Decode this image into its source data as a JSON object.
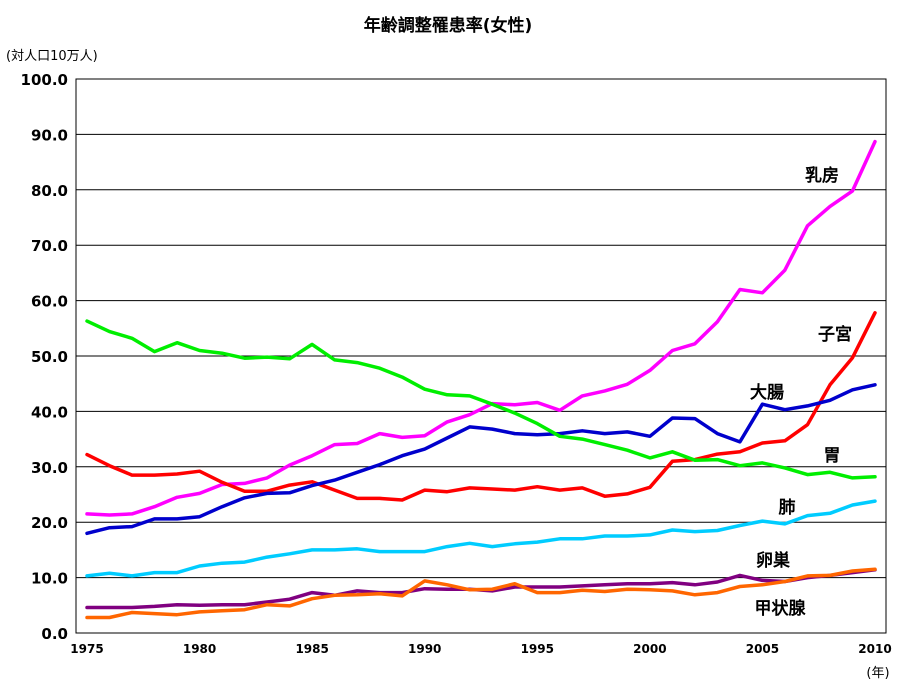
{
  "chart_data": {
    "type": "line",
    "title": "年齢調整罹患率(女性)",
    "y_unit_label": "(対人口10万人)",
    "x_unit_label": "(年)",
    "xlim": [
      1975,
      2010
    ],
    "ylim": [
      0,
      100
    ],
    "grid": true,
    "y_ticks": [
      "0.0",
      "10.0",
      "20.0",
      "30.0",
      "40.0",
      "50.0",
      "60.0",
      "70.0",
      "80.0",
      "90.0",
      "100.0"
    ],
    "x_ticks": [
      "1975",
      "1980",
      "1985",
      "1990",
      "1995",
      "2000",
      "2005",
      "2010"
    ],
    "x": [
      1975,
      1976,
      1977,
      1978,
      1979,
      1980,
      1981,
      1982,
      1983,
      1984,
      1985,
      1986,
      1987,
      1988,
      1989,
      1990,
      1991,
      1992,
      1993,
      1994,
      1995,
      1996,
      1997,
      1998,
      1999,
      2000,
      2001,
      2002,
      2003,
      2004,
      2005,
      2006,
      2007,
      2008,
      2009,
      2010
    ],
    "series": [
      {
        "name": "乳房",
        "color": "#ff00ff",
        "values": [
          21.5,
          21.3,
          21.5,
          22.8,
          24.5,
          25.2,
          26.8,
          27.0,
          28.0,
          30.3,
          32.0,
          34.0,
          34.2,
          36.0,
          35.3,
          35.6,
          38.1,
          39.4,
          41.4,
          41.2,
          41.6,
          40.2,
          42.8,
          43.7,
          44.9,
          47.4,
          51.0,
          52.2,
          56.2,
          62.0,
          61.4,
          65.5,
          73.5,
          77.0,
          79.8,
          88.7
        ]
      },
      {
        "name": "子宮",
        "color": "#ff0000",
        "values": [
          32.2,
          30.2,
          28.5,
          28.5,
          28.7,
          29.2,
          27.2,
          25.6,
          25.6,
          26.7,
          27.3,
          25.8,
          24.3,
          24.3,
          24.0,
          25.8,
          25.5,
          26.2,
          26.0,
          25.8,
          26.4,
          25.8,
          26.2,
          24.7,
          25.1,
          26.3,
          31.0,
          31.3,
          32.3,
          32.7,
          34.3,
          34.7,
          37.6,
          44.8,
          49.7,
          57.8
        ]
      },
      {
        "name": "大腸",
        "color": "#0000cc",
        "values": [
          18.0,
          19.0,
          19.2,
          20.6,
          20.6,
          21.0,
          22.8,
          24.4,
          25.2,
          25.3,
          26.6,
          27.6,
          29.0,
          30.4,
          32.0,
          33.2,
          35.2,
          37.2,
          36.8,
          36.0,
          35.8,
          36.0,
          36.5,
          36.0,
          36.3,
          35.5,
          38.8,
          38.7,
          36.0,
          34.5,
          41.3,
          40.3,
          41.0,
          42.0,
          43.9,
          44.8
        ]
      },
      {
        "name": "胃",
        "color": "#00ee00",
        "values": [
          56.3,
          54.4,
          53.2,
          50.8,
          52.4,
          51.0,
          50.5,
          49.6,
          49.8,
          49.5,
          52.1,
          49.3,
          48.8,
          47.8,
          46.2,
          44.0,
          43.0,
          42.8,
          41.3,
          39.7,
          37.8,
          35.5,
          35.0,
          34.0,
          33.0,
          31.6,
          32.7,
          31.2,
          31.3,
          30.2,
          30.7,
          29.8,
          28.6,
          29.0,
          28.0,
          28.2
        ]
      },
      {
        "name": "肺",
        "color": "#00ccff",
        "values": [
          10.3,
          10.8,
          10.3,
          10.9,
          10.9,
          12.1,
          12.6,
          12.8,
          13.7,
          14.3,
          15.0,
          15.0,
          15.2,
          14.7,
          14.7,
          14.7,
          15.6,
          16.2,
          15.6,
          16.1,
          16.4,
          17.0,
          17.0,
          17.5,
          17.5,
          17.7,
          18.6,
          18.3,
          18.5,
          19.4,
          20.2,
          19.7,
          21.2,
          21.6,
          23.1,
          23.8
        ]
      },
      {
        "name": "卵巣",
        "color": "#800080",
        "values": [
          4.6,
          4.6,
          4.6,
          4.8,
          5.1,
          5.0,
          5.1,
          5.1,
          5.6,
          6.1,
          7.3,
          6.8,
          7.6,
          7.3,
          7.3,
          8.0,
          7.9,
          7.9,
          7.6,
          8.3,
          8.3,
          8.3,
          8.5,
          8.7,
          8.9,
          8.9,
          9.1,
          8.7,
          9.2,
          10.4,
          9.5,
          9.3,
          10.0,
          10.4,
          10.9,
          11.4
        ]
      },
      {
        "name": "甲状腺",
        "color": "#ff6600",
        "values": [
          2.8,
          2.8,
          3.7,
          3.5,
          3.3,
          3.8,
          4.0,
          4.2,
          5.1,
          4.9,
          6.2,
          6.8,
          6.9,
          7.1,
          6.7,
          9.4,
          8.7,
          7.8,
          7.9,
          8.9,
          7.3,
          7.3,
          7.7,
          7.5,
          7.9,
          7.8,
          7.6,
          6.9,
          7.3,
          8.4,
          8.7,
          9.3,
          10.3,
          10.4,
          11.2,
          11.5
        ]
      }
    ]
  }
}
